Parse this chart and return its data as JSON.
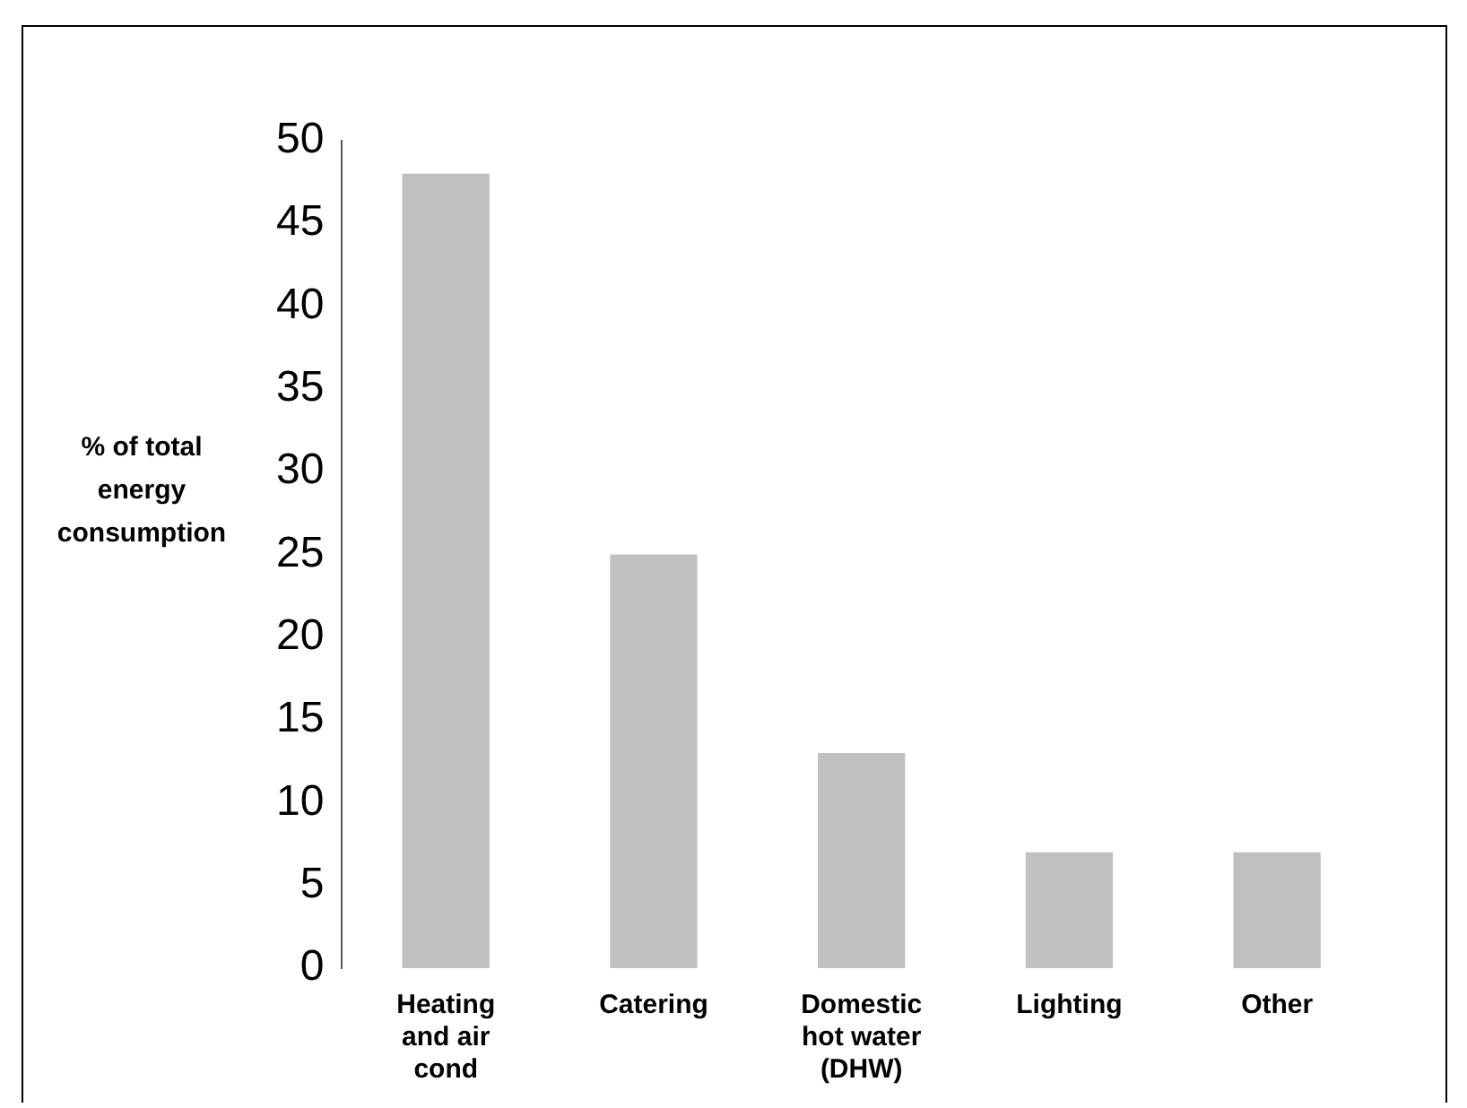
{
  "chart_data": {
    "type": "bar",
    "ylabel": "% of total energy consumption",
    "categories": [
      "Heating and air cond",
      "Catering",
      "Domestic hot water (DHW)",
      "Lighting",
      "Other"
    ],
    "values": [
      48,
      25,
      13,
      7,
      7
    ],
    "color": "#c0c0c0",
    "ylim": [
      0,
      50
    ],
    "yticks": [
      0,
      5,
      10,
      15,
      20,
      25,
      30,
      35,
      40,
      45,
      50
    ],
    "grid": false,
    "legend": false
  }
}
